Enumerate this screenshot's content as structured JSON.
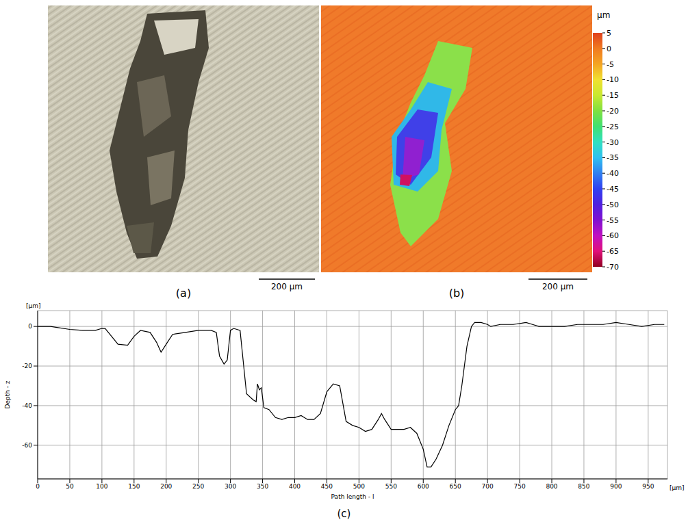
{
  "images": [
    {
      "label": "(a)",
      "scale_bar": "200 μm"
    },
    {
      "label": "(b)",
      "scale_bar": "200 μm",
      "colorbar": {
        "unit": "μm",
        "range": [
          -70,
          5
        ],
        "ticks": [
          5,
          0,
          -5,
          -10,
          -15,
          -20,
          -25,
          -30,
          -35,
          -40,
          -45,
          -50,
          -55,
          -60,
          -65,
          -70
        ]
      }
    }
  ],
  "chart_data": {
    "type": "line",
    "label": "(c)",
    "x_label": "Path length - l",
    "y_label": "Depth - z",
    "x_unit_label": "[μm]",
    "y_unit_label": "[μm]",
    "x": [
      0,
      20,
      30,
      50,
      70,
      90,
      100,
      105,
      115,
      125,
      140,
      150,
      160,
      175,
      185,
      192,
      200,
      210,
      230,
      250,
      270,
      278,
      283,
      290,
      295,
      300,
      305,
      315,
      320,
      325,
      335,
      340,
      342,
      345,
      348,
      352,
      360,
      370,
      380,
      390,
      400,
      410,
      420,
      430,
      440,
      450,
      460,
      470,
      480,
      490,
      500,
      510,
      520,
      530,
      535,
      540,
      550,
      570,
      580,
      590,
      600,
      606,
      612,
      620,
      630,
      640,
      650,
      655,
      660,
      668,
      675,
      680,
      690,
      700,
      705,
      720,
      740,
      760,
      770,
      780,
      800,
      820,
      840,
      860,
      880,
      900,
      920,
      940,
      960,
      975
    ],
    "values": [
      0,
      0,
      -0.5,
      -1.5,
      -2,
      -2,
      -1,
      -1,
      -5,
      -9,
      -9.5,
      -5,
      -2,
      -3,
      -8,
      -13,
      -9,
      -4,
      -3,
      -2,
      -2,
      -3,
      -15,
      -19,
      -17,
      -2,
      -1,
      -2,
      -18,
      -34,
      -37,
      -38,
      -29,
      -32,
      -31,
      -41,
      -42,
      -46,
      -47,
      -46,
      -46,
      -45,
      -47,
      -47,
      -44,
      -33,
      -29,
      -30,
      -48,
      -50,
      -51,
      -53,
      -52,
      -47,
      -44,
      -47,
      -52,
      -52,
      -51,
      -54,
      -62,
      -71,
      -71,
      -67,
      -60,
      -50,
      -42,
      -40,
      -30,
      -10,
      0,
      2,
      2,
      1,
      0,
      1,
      1,
      2,
      1,
      0,
      0,
      0,
      1,
      1,
      1,
      2,
      1,
      0,
      1,
      1
    ],
    "color": "#000000",
    "xlim": [
      0,
      980
    ],
    "ylim": [
      -77,
      8
    ],
    "xticks": [
      0,
      50,
      100,
      150,
      200,
      250,
      300,
      350,
      400,
      450,
      500,
      550,
      600,
      650,
      700,
      750,
      800,
      850,
      900,
      950
    ],
    "yticks": [
      0,
      -20,
      -40,
      -60
    ],
    "grid": true
  }
}
